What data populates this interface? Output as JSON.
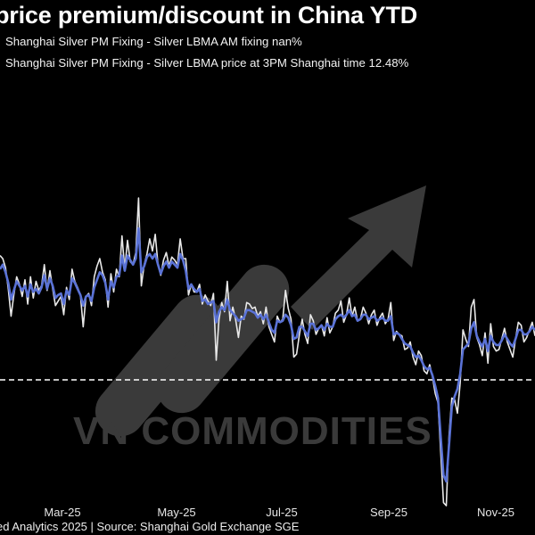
{
  "header": {
    "title": "price premium/discount in China YTD",
    "legend_1": "Shanghai Silver PM Fixing - Silver LBMA AM fixing nan%",
    "legend_2": "Shanghai Silver PM Fixing - Silver LBMA price at 3PM Shanghai time 12.48%"
  },
  "watermark": {
    "text": "VN COMMODITIES"
  },
  "footer": {
    "source": "ed Analytics 2025 | Source: Shanghai Gold Exchange SGE"
  },
  "colors": {
    "background": "#000000",
    "series_white": "#e8e8e8",
    "series_blue": "#5a72d6",
    "zero_line": "#ffffff",
    "watermark": "#3a3a3a"
  },
  "chart_data": {
    "type": "line",
    "title": "price premium/discount in China YTD",
    "x_ticks": [
      "Mar-25",
      "May-25",
      "Jul-25",
      "Sep-25",
      "Nov-25"
    ],
    "grid": false,
    "zero_line": "dashed",
    "series": [
      {
        "name": "Shanghai Silver PM Fixing - Silver LBMA AM fixing nan%",
        "color": "#e8e8e8",
        "values": [
          8.2,
          8.0,
          7.4,
          6.0,
          4.2,
          5.6,
          6.8,
          6.3,
          5.5,
          6.6,
          5.0,
          6.8,
          5.4,
          6.5,
          5.9,
          6.2,
          7.6,
          5.9,
          7.2,
          6.0,
          4.9,
          5.2,
          5.5,
          4.3,
          6.1,
          5.3,
          7.3,
          6.5,
          6.1,
          5.6,
          3.5,
          5.5,
          5.7,
          4.9,
          6.8,
          7.5,
          8.0,
          7.1,
          6.6,
          4.8,
          7.0,
          5.8,
          7.3,
          6.8,
          9.5,
          7.3,
          9.2,
          7.8,
          7.6,
          8.4,
          12.0,
          6.2,
          7.6,
          8.3,
          9.3,
          8.5,
          9.6,
          7.6,
          6.9,
          7.9,
          8.4,
          7.5,
          8.1,
          7.9,
          7.6,
          9.3,
          8.0,
          8.0,
          5.6,
          6.3,
          5.8,
          5.8,
          6.3,
          5.0,
          5.6,
          5.2,
          4.9,
          5.7,
          1.3,
          4.0,
          5.1,
          4.5,
          6.5,
          3.9,
          4.8,
          4.0,
          2.8,
          4.2,
          4.0,
          5.1,
          5.0,
          4.7,
          4.8,
          4.2,
          4.5,
          3.7,
          4.8,
          3.5,
          3.0,
          2.5,
          4.2,
          3.8,
          4.0,
          5.9,
          4.7,
          4.0,
          1.5,
          1.7,
          3.0,
          4.0,
          3.0,
          2.4,
          4.3,
          3.9,
          3.0,
          3.4,
          3.6,
          2.9,
          4.1,
          3.1,
          3.5,
          4.4,
          4.6,
          5.2,
          3.8,
          4.3,
          5.4,
          4.2,
          4.8,
          3.9,
          4.0,
          4.8,
          4.4,
          3.7,
          4.3,
          4.6,
          3.6,
          4.1,
          4.4,
          3.7,
          4.0,
          5.1,
          2.6,
          3.2,
          3.0,
          2.9,
          2.0,
          2.1,
          2.5,
          1.5,
          1.0,
          1.9,
          1.6,
          0.6,
          0.4,
          1.0,
          0.2,
          -0.9,
          -1.5,
          -4.8,
          -8.1,
          -8.3,
          -3.7,
          -1.2,
          -1.3,
          -2.2,
          -0.2,
          3.3,
          2.7,
          2.2,
          4.8,
          5.3,
          2.8,
          2.3,
          1.6,
          3.1,
          1.1,
          3.7,
          2.2,
          1.9,
          2.0,
          2.7,
          3.4,
          2.5,
          2.0,
          1.5,
          2.7,
          3.8,
          3.6,
          2.5,
          2.8,
          3.3,
          3.8,
          2.9
        ],
        "visible_label": ""
      },
      {
        "name": "Shanghai Silver PM Fixing - Silver LBMA price at 3PM Shanghai time 12.48%",
        "color": "#5a72d6",
        "values": [
          7.3,
          7.6,
          7.1,
          6.4,
          5.3,
          5.9,
          6.5,
          6.2,
          5.9,
          6.2,
          5.5,
          6.3,
          5.8,
          6.0,
          5.7,
          6.1,
          6.9,
          6.0,
          6.7,
          6.2,
          5.4,
          5.6,
          5.7,
          5.0,
          5.9,
          5.6,
          6.7,
          6.4,
          6.0,
          5.6,
          4.9,
          5.5,
          5.6,
          5.2,
          6.1,
          6.6,
          7.1,
          6.9,
          6.4,
          5.3,
          6.5,
          6.1,
          6.8,
          6.9,
          8.2,
          7.2,
          8.2,
          7.9,
          7.6,
          8.0,
          10.0,
          7.1,
          7.5,
          8.1,
          8.3,
          8.0,
          8.3,
          7.6,
          7.0,
          7.5,
          7.8,
          7.4,
          7.8,
          7.6,
          7.4,
          8.3,
          7.9,
          7.2,
          6.0,
          6.3,
          6.0,
          5.8,
          6.0,
          5.2,
          5.3,
          5.0,
          5.1,
          5.2,
          3.8,
          4.5,
          4.8,
          4.6,
          5.3,
          4.6,
          4.4,
          4.2,
          3.9,
          4.0,
          4.1,
          4.6,
          4.6,
          4.5,
          4.4,
          4.1,
          4.3,
          4.0,
          4.3,
          3.8,
          3.3,
          3.1,
          3.9,
          3.8,
          3.9,
          4.3,
          4.1,
          3.6,
          2.7,
          2.8,
          3.5,
          3.5,
          3.2,
          2.9,
          3.7,
          3.7,
          3.3,
          3.4,
          3.6,
          3.3,
          3.7,
          3.5,
          3.5,
          4.0,
          4.2,
          4.3,
          4.1,
          4.3,
          4.6,
          4.2,
          4.3,
          3.9,
          4.0,
          4.3,
          4.3,
          4.0,
          4.1,
          4.2,
          3.9,
          4.0,
          4.1,
          3.9,
          3.9,
          4.2,
          3.0,
          3.1,
          3.0,
          2.7,
          2.4,
          2.3,
          2.2,
          1.8,
          1.5,
          1.6,
          1.3,
          0.9,
          0.7,
          0.8,
          0.3,
          -0.4,
          -1.2,
          -3.8,
          -6.3,
          -6.7,
          -4.3,
          -1.8,
          -1.1,
          -0.6,
          0.4,
          2.0,
          2.2,
          2.4,
          3.4,
          3.8,
          2.9,
          2.5,
          2.2,
          2.7,
          1.9,
          2.9,
          2.5,
          2.3,
          2.3,
          2.6,
          3.0,
          2.7,
          2.4,
          2.2,
          2.7,
          3.3,
          3.3,
          3.0,
          3.0,
          3.2,
          3.5,
          3.3
        ],
        "visible_label": ""
      }
    ]
  }
}
